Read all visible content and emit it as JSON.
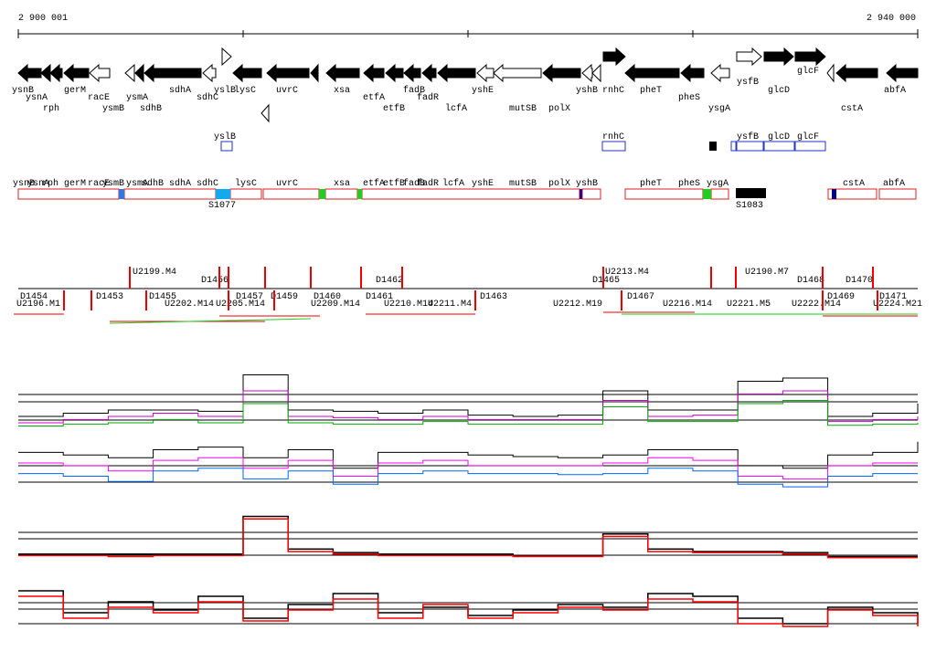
{
  "ruler": {
    "start": "2 900 001",
    "end": "2 940 000"
  },
  "genes": {
    "row_a": [
      "ysnB",
      "gerM",
      "sdhA",
      "yslB",
      "lysC",
      "uvrC",
      "xsa",
      "etfA",
      "fadB",
      "yshE",
      "yshB",
      "rnhC",
      "pheT",
      "ysfB",
      "glcF",
      "abfA"
    ],
    "row_b": [
      "ysnA",
      "racE",
      "ysmA",
      "sdhC",
      "pheS",
      "glcD"
    ],
    "row_c": [
      "rph",
      "ysmB",
      "sdhB",
      "etfB",
      "fadR",
      "lcfA",
      "mutSB",
      "polX",
      "ysgA",
      "cstA"
    ]
  },
  "boxes": [
    "yslB",
    "rnhC",
    "ysfB",
    "glcD",
    "glcF"
  ],
  "segments": {
    "labels": [
      "ysnB",
      "ysnA",
      "rph",
      "gerM",
      "racE",
      "ysmB",
      "ysmA",
      "sdhB",
      "sdhA",
      "sdhC",
      "lysC",
      "uvrC",
      "xsa",
      "etfA",
      "etfB",
      "fadB",
      "fadR",
      "lcfA",
      "yshE",
      "mutSB",
      "polX",
      "yshB",
      "pheT",
      "pheS",
      "ysgA",
      "cstA",
      "abfA"
    ],
    "features": [
      "S1077",
      "S1083"
    ]
  },
  "probes": {
    "top": [
      "U2199.M4",
      "D1456",
      "D1462",
      "D1465",
      "U2213.M4",
      "U2190.M7",
      "D1468",
      "D1470"
    ],
    "mid": [
      "D1454",
      "D1453",
      "D1455",
      "D1457",
      "D1459",
      "D1460",
      "D1461",
      "D1463",
      "D1467",
      "D1469",
      "D1471"
    ],
    "low": [
      "U2196.M1",
      "U2202.M14",
      "U2205.M14",
      "U2209.M14",
      "U2210.M14",
      "U2211.M4",
      "U2212.M19",
      "U2216.M14",
      "U2221.M5",
      "U2222.M14",
      "U2224.M21"
    ]
  },
  "panels": [
    {
      "series": [
        {
          "color": "#000000",
          "values": [
            20,
            25,
            30,
            30,
            28,
            85,
            30,
            28,
            25,
            30,
            22,
            20,
            22,
            60,
            30,
            30,
            75,
            80,
            20,
            25,
            40
          ]
        },
        {
          "color": "#cc00cc",
          "values": [
            10,
            15,
            20,
            25,
            20,
            60,
            20,
            18,
            15,
            20,
            15,
            15,
            15,
            45,
            20,
            22,
            55,
            60,
            12,
            15,
            20
          ]
        },
        {
          "color": "#00aa00",
          "values": [
            5,
            8,
            10,
            15,
            10,
            40,
            10,
            8,
            8,
            12,
            8,
            8,
            8,
            35,
            12,
            12,
            40,
            45,
            6,
            8,
            10
          ]
        }
      ]
    },
    {
      "series": [
        {
          "color": "#000000",
          "values": [
            70,
            65,
            60,
            75,
            80,
            60,
            75,
            40,
            70,
            70,
            65,
            62,
            60,
            65,
            75,
            75,
            45,
            40,
            65,
            70,
            90
          ]
        },
        {
          "color": "#ff00ff",
          "values": [
            50,
            45,
            35,
            55,
            60,
            40,
            55,
            25,
            50,
            55,
            45,
            45,
            45,
            50,
            60,
            55,
            25,
            20,
            45,
            50,
            50
          ]
        },
        {
          "color": "#0066ff",
          "values": [
            30,
            25,
            15,
            35,
            40,
            20,
            35,
            10,
            30,
            35,
            30,
            30,
            28,
            30,
            40,
            35,
            10,
            5,
            25,
            30,
            30
          ]
        }
      ]
    },
    {
      "series": [
        {
          "color": "#000000",
          "values": [
            15,
            15,
            15,
            15,
            15,
            90,
            25,
            18,
            15,
            15,
            15,
            12,
            12,
            55,
            25,
            20,
            20,
            18,
            10,
            10,
            10
          ]
        },
        {
          "color": "#ff0000",
          "values": [
            12,
            12,
            10,
            12,
            12,
            85,
            20,
            15,
            12,
            12,
            12,
            10,
            10,
            50,
            20,
            18,
            18,
            15,
            8,
            8,
            8
          ]
        }
      ]
    },
    {
      "series": [
        {
          "color": "#000000",
          "values": [
            80,
            40,
            60,
            45,
            70,
            30,
            55,
            75,
            40,
            50,
            35,
            45,
            55,
            50,
            75,
            70,
            30,
            20,
            50,
            40,
            20
          ]
        },
        {
          "color": "#ff0000",
          "values": [
            70,
            30,
            50,
            40,
            60,
            25,
            45,
            65,
            30,
            55,
            30,
            40,
            50,
            45,
            65,
            60,
            20,
            15,
            45,
            35,
            15
          ]
        }
      ]
    }
  ]
}
